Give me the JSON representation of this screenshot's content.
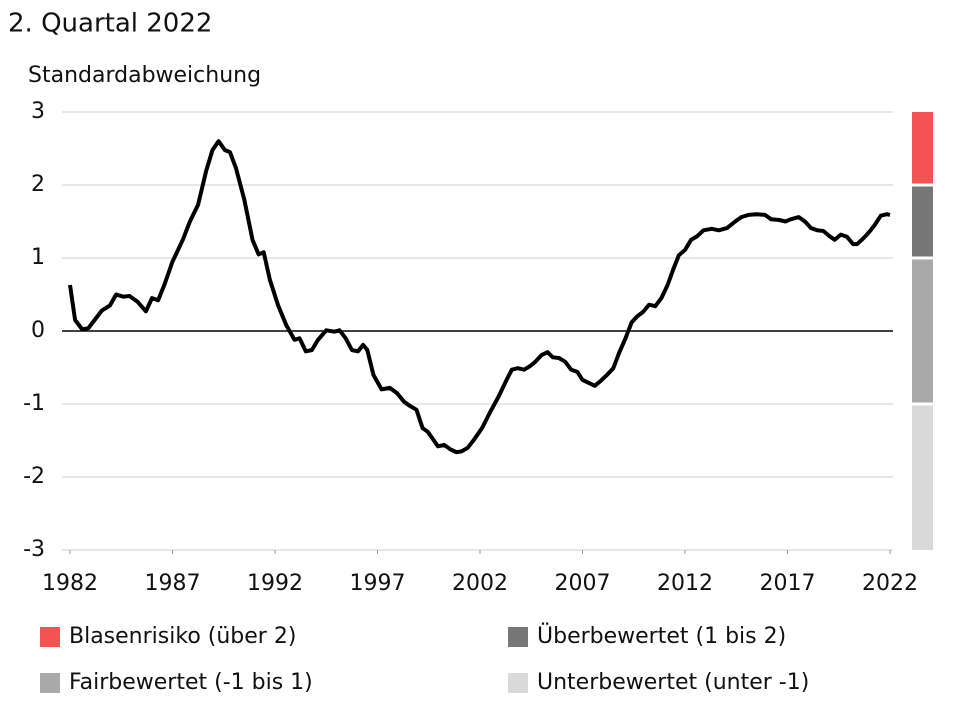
{
  "chart_data": {
    "type": "line",
    "title": "2. Quartal 2022",
    "y_label": "Standardabweichung",
    "color": "#000000",
    "x": [
      1982.0,
      1982.25,
      1982.6,
      1982.9,
      1983.2,
      1983.55,
      1983.95,
      1984.25,
      1984.6,
      1984.9,
      1985.3,
      1985.7,
      1986.0,
      1986.3,
      1986.6,
      1987.0,
      1987.5,
      1987.85,
      1988.25,
      1988.65,
      1988.95,
      1989.25,
      1989.55,
      1989.8,
      1990.1,
      1990.5,
      1990.9,
      1991.2,
      1991.45,
      1991.75,
      1992.15,
      1992.55,
      1992.95,
      1993.2,
      1993.5,
      1993.8,
      1994.1,
      1994.5,
      1994.9,
      1995.15,
      1995.45,
      1995.75,
      1996.05,
      1996.3,
      1996.5,
      1996.8,
      1997.2,
      1997.6,
      1997.95,
      1998.3,
      1998.55,
      1998.9,
      1999.2,
      1999.45,
      1999.75,
      1999.95,
      2000.25,
      2000.55,
      2000.85,
      2001.1,
      2001.4,
      2001.7,
      2002.1,
      2002.5,
      2002.9,
      2003.3,
      2003.55,
      2003.85,
      2004.15,
      2004.45,
      2004.7,
      2005.0,
      2005.3,
      2005.55,
      2005.85,
      2006.15,
      2006.45,
      2006.75,
      2007.0,
      2007.3,
      2007.6,
      2007.9,
      2008.2,
      2008.5,
      2008.8,
      2009.1,
      2009.4,
      2009.7,
      2009.95,
      2010.25,
      2010.55,
      2010.85,
      2011.15,
      2011.45,
      2011.7,
      2012.0,
      2012.3,
      2012.6,
      2012.9,
      2013.3,
      2013.65,
      2014.05,
      2014.45,
      2014.75,
      2015.1,
      2015.5,
      2015.9,
      2016.2,
      2016.6,
      2016.9,
      2017.15,
      2017.55,
      2017.85,
      2018.15,
      2018.45,
      2018.75,
      2019.05,
      2019.3,
      2019.6,
      2019.9,
      2020.2,
      2020.4,
      2020.7,
      2021.0,
      2021.25,
      2021.55,
      2021.85,
      2022.0
    ],
    "values": [
      0.63,
      0.15,
      0.02,
      0.04,
      0.15,
      0.28,
      0.35,
      0.5,
      0.47,
      0.48,
      0.4,
      0.27,
      0.45,
      0.42,
      0.63,
      0.95,
      1.25,
      1.5,
      1.73,
      2.2,
      2.48,
      2.6,
      2.48,
      2.45,
      2.23,
      1.8,
      1.25,
      1.05,
      1.08,
      0.7,
      0.35,
      0.08,
      -0.12,
      -0.1,
      -0.28,
      -0.26,
      -0.12,
      0.01,
      -0.01,
      0.01,
      -0.1,
      -0.26,
      -0.28,
      -0.19,
      -0.26,
      -0.6,
      -0.8,
      -0.78,
      -0.85,
      -0.97,
      -1.02,
      -1.08,
      -1.33,
      -1.38,
      -1.5,
      -1.58,
      -1.56,
      -1.62,
      -1.66,
      -1.65,
      -1.6,
      -1.49,
      -1.33,
      -1.11,
      -0.9,
      -0.67,
      -0.53,
      -0.51,
      -0.53,
      -0.48,
      -0.42,
      -0.33,
      -0.29,
      -0.36,
      -0.37,
      -0.42,
      -0.53,
      -0.56,
      -0.67,
      -0.71,
      -0.75,
      -0.68,
      -0.6,
      -0.51,
      -0.29,
      -0.1,
      0.12,
      0.21,
      0.26,
      0.36,
      0.34,
      0.45,
      0.63,
      0.86,
      1.04,
      1.11,
      1.25,
      1.3,
      1.38,
      1.4,
      1.38,
      1.41,
      1.5,
      1.56,
      1.59,
      1.6,
      1.59,
      1.53,
      1.52,
      1.5,
      1.53,
      1.56,
      1.5,
      1.41,
      1.38,
      1.37,
      1.3,
      1.25,
      1.32,
      1.29,
      1.19,
      1.19,
      1.27,
      1.36,
      1.45,
      1.58,
      1.6,
      1.59
    ],
    "xlim": [
      1982,
      2022
    ],
    "xticks": [
      1982,
      1987,
      1992,
      1997,
      2002,
      2007,
      2012,
      2017,
      2022
    ],
    "ylim": [
      -3,
      3
    ],
    "yticks": [
      -3,
      -2,
      -1,
      0,
      1,
      2,
      3
    ],
    "grid": true,
    "bands": [
      {
        "name": "Blasenrisiko (über 2)",
        "color": "#f45353",
        "range": [
          2,
          3
        ]
      },
      {
        "name": "Überbewertet (1 bis 2)",
        "color": "#777777",
        "range": [
          1,
          2
        ]
      },
      {
        "name": "Fairbewertet (-1 bis 1)",
        "color": "#a9a9a9",
        "range": [
          -1,
          1
        ]
      },
      {
        "name": "Unterbewertet (unter -1)",
        "color": "#d9d9d9",
        "range": [
          -3,
          -1
        ]
      }
    ]
  }
}
